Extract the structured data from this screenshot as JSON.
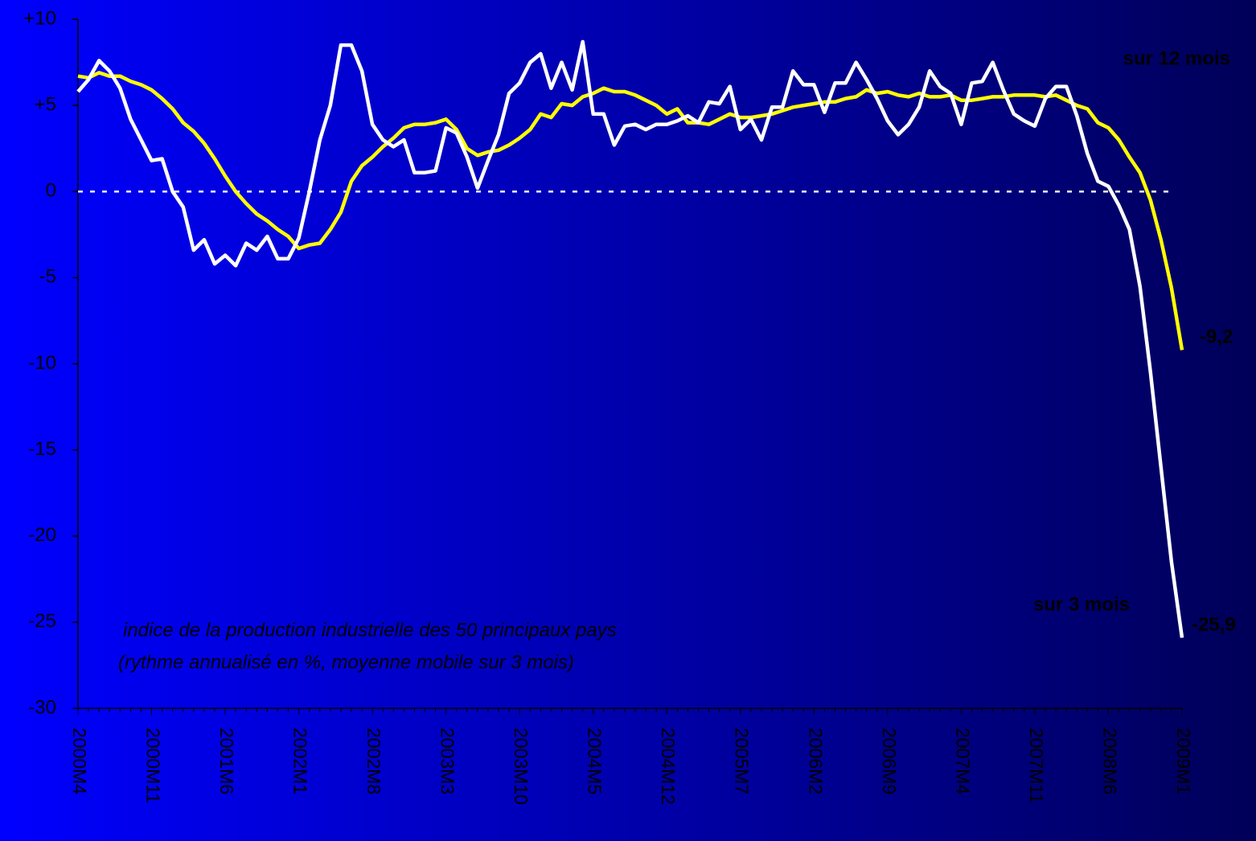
{
  "chart_data": {
    "type": "line",
    "annotation": [
      "indice de la production industrielle des 50 principaux pays",
      "(rythme annualisé en %, moyenne mobile sur 3 mois)"
    ],
    "categories": [
      "2000M4",
      null,
      null,
      null,
      null,
      null,
      null,
      "2000M11",
      null,
      null,
      null,
      null,
      null,
      null,
      "2001M6",
      null,
      null,
      null,
      null,
      null,
      null,
      "2002M1",
      null,
      null,
      null,
      null,
      null,
      null,
      "2002M8",
      null,
      null,
      null,
      null,
      null,
      null,
      "2003M3",
      null,
      null,
      null,
      null,
      null,
      null,
      "2003M10",
      null,
      null,
      null,
      null,
      null,
      null,
      "2004M5",
      null,
      null,
      null,
      null,
      null,
      null,
      "2004M12",
      null,
      null,
      null,
      null,
      null,
      null,
      "2005M7",
      null,
      null,
      null,
      null,
      null,
      null,
      "2006M2",
      null,
      null,
      null,
      null,
      null,
      null,
      "2006M9",
      null,
      null,
      null,
      null,
      null,
      null,
      "2007M4",
      null,
      null,
      null,
      null,
      null,
      null,
      "2007M11",
      null,
      null,
      null,
      null,
      null,
      null,
      "2008M6",
      null,
      null,
      null,
      null,
      null,
      null,
      "2009M1"
    ],
    "series": [
      {
        "name": "sur 12 mois",
        "color": "#ffff00",
        "values": [
          6.7,
          6.6,
          6.9,
          6.7,
          6.7,
          6.4,
          6.2,
          5.9,
          5.4,
          4.8,
          4.0,
          3.5,
          2.8,
          1.9,
          0.9,
          0.0,
          -0.7,
          -1.3,
          -1.7,
          -2.2,
          -2.6,
          -3.3,
          -3.1,
          -3.0,
          -2.2,
          -1.2,
          0.6,
          1.5,
          2.0,
          2.6,
          3.1,
          3.7,
          3.9,
          3.9,
          4.0,
          4.2,
          3.6,
          2.5,
          2.1,
          2.3,
          2.4,
          2.7,
          3.1,
          3.6,
          4.5,
          4.3,
          5.1,
          5.0,
          5.5,
          5.7,
          6.0,
          5.8,
          5.8,
          5.6,
          5.3,
          5.0,
          4.5,
          4.8,
          4.0,
          4.0,
          3.9,
          4.2,
          4.5,
          4.3,
          4.3,
          4.4,
          4.5,
          4.7,
          4.9,
          5.0,
          5.1,
          5.2,
          5.2,
          5.4,
          5.5,
          5.9,
          5.7,
          5.8,
          5.6,
          5.5,
          5.7,
          5.5,
          5.5,
          5.6,
          5.3,
          5.3,
          5.4,
          5.5,
          5.5,
          5.6,
          5.6,
          5.6,
          5.5,
          5.6,
          5.3,
          5.0,
          4.8,
          4.0,
          3.7,
          3.0,
          2.0,
          1.1,
          -0.5,
          -2.8,
          -5.6,
          -9.2
        ],
        "value_labels": [
          null,
          null,
          null,
          null,
          null,
          null,
          null,
          null,
          null,
          null,
          null,
          null,
          null,
          null,
          null,
          null,
          null,
          null,
          null,
          null,
          null,
          null,
          null,
          null,
          null,
          null,
          null,
          null,
          null,
          null,
          null,
          null,
          null,
          null,
          null,
          null,
          null,
          null,
          null,
          null,
          null,
          null,
          null,
          null,
          null,
          null,
          null,
          null,
          null,
          null,
          null,
          null,
          null,
          null,
          null,
          null,
          null,
          null,
          null,
          null,
          null,
          null,
          null,
          null,
          null,
          null,
          null,
          null,
          null,
          null,
          null,
          null,
          null,
          null,
          null,
          null,
          null,
          null,
          null,
          null,
          null,
          null,
          null,
          null,
          null,
          null,
          null,
          null,
          null,
          null,
          null,
          null,
          null,
          null,
          null,
          null,
          null,
          null,
          null,
          null,
          null,
          null,
          null,
          null,
          null,
          "-9,2"
        ]
      },
      {
        "name": "sur 3 mois",
        "color": "#ffffff",
        "values": [
          5.8,
          6.5,
          7.6,
          7.0,
          6.0,
          4.2,
          3.0,
          1.8,
          1.9,
          0.0,
          -0.9,
          -3.4,
          -2.8,
          -4.2,
          -3.7,
          -4.3,
          -3.0,
          -3.4,
          -2.6,
          -3.9,
          -3.9,
          -2.7,
          0.0,
          3.0,
          5.0,
          8.5,
          8.5,
          7.0,
          3.9,
          3.0,
          2.6,
          3.0,
          1.1,
          1.1,
          1.2,
          3.7,
          3.4,
          2.0,
          0.2,
          1.8,
          3.3,
          5.7,
          6.3,
          7.5,
          8.0,
          6.0,
          7.5,
          5.9,
          8.7,
          4.5,
          4.5,
          2.7,
          3.8,
          3.9,
          3.6,
          3.9,
          3.9,
          4.1,
          4.4,
          4.0,
          5.2,
          5.1,
          6.1,
          3.6,
          4.2,
          3.0,
          4.9,
          4.9,
          7.0,
          6.2,
          6.2,
          4.6,
          6.3,
          6.3,
          7.5,
          6.5,
          5.4,
          4.1,
          3.3,
          3.9,
          4.9,
          7.0,
          6.1,
          5.7,
          3.9,
          6.3,
          6.4,
          7.5,
          5.9,
          4.5,
          4.1,
          3.8,
          5.4,
          6.1,
          6.1,
          4.4,
          2.2,
          0.6,
          0.3,
          -0.8,
          -2.2,
          -5.5,
          -10.5,
          -16.0,
          -21.5,
          -25.9
        ],
        "value_labels": [
          null,
          null,
          null,
          null,
          null,
          null,
          null,
          null,
          null,
          null,
          null,
          null,
          null,
          null,
          null,
          null,
          null,
          null,
          null,
          null,
          null,
          null,
          null,
          null,
          null,
          null,
          null,
          null,
          null,
          null,
          null,
          null,
          null,
          null,
          null,
          null,
          null,
          null,
          null,
          null,
          null,
          null,
          null,
          null,
          null,
          null,
          null,
          null,
          null,
          null,
          null,
          null,
          null,
          null,
          null,
          null,
          null,
          null,
          null,
          null,
          null,
          null,
          null,
          null,
          null,
          null,
          null,
          null,
          null,
          null,
          null,
          null,
          null,
          null,
          null,
          null,
          null,
          null,
          null,
          null,
          null,
          null,
          null,
          null,
          null,
          null,
          null,
          null,
          null,
          null,
          null,
          null,
          null,
          null,
          null,
          null,
          null,
          null,
          null,
          null,
          null,
          null,
          null,
          null,
          null,
          "-25,9"
        ]
      }
    ],
    "ylim": [
      -30,
      10
    ],
    "yticks": [
      {
        "value": 10,
        "label": "+10"
      },
      {
        "value": 5,
        "label": "+5"
      },
      0,
      -5,
      -10,
      -15,
      -20,
      -25,
      -30
    ],
    "reference_line": 0
  }
}
